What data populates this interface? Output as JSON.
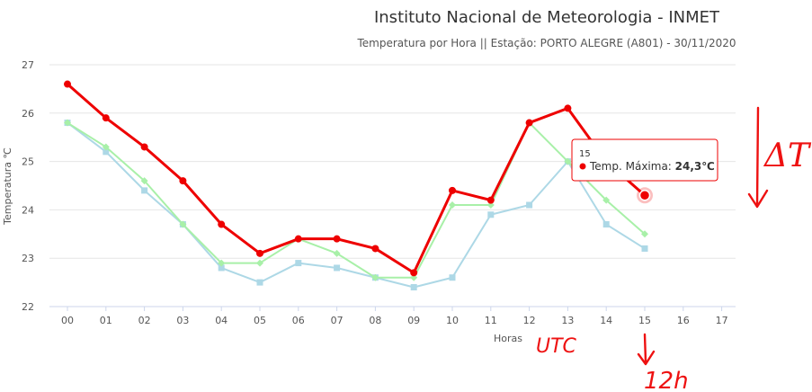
{
  "chart_data": {
    "type": "line",
    "title": "Instituto Nacional de Meteorologia - INMET",
    "subtitle": "Temperatura por Hora || Estação: PORTO ALEGRE (A801) - 30/11/2020",
    "xlabel": "Horas",
    "ylabel": "Temperatura ℃",
    "categories": [
      "00",
      "01",
      "02",
      "03",
      "04",
      "05",
      "06",
      "07",
      "08",
      "09",
      "10",
      "11",
      "12",
      "13",
      "14",
      "15",
      "16",
      "17"
    ],
    "ylim": [
      22,
      27
    ],
    "yticks": [
      "22",
      "23",
      "24",
      "25",
      "26",
      "27"
    ],
    "grid": true,
    "legend": "none",
    "series": [
      {
        "name": "",
        "color": "#add8e6",
        "marker": "square",
        "values": [
          25.8,
          25.2,
          24.4,
          23.7,
          22.8,
          22.5,
          22.9,
          22.8,
          22.6,
          22.4,
          22.6,
          23.9,
          24.1,
          25.0,
          23.7,
          23.2,
          null,
          null
        ]
      },
      {
        "name": "",
        "color": "#a8f0a8",
        "marker": "diamond",
        "values": [
          25.8,
          25.3,
          24.6,
          23.7,
          22.9,
          22.9,
          23.4,
          23.1,
          22.6,
          22.6,
          24.1,
          24.1,
          25.8,
          25.0,
          24.2,
          23.5,
          null,
          null
        ]
      },
      {
        "name": "Temp. Máxima",
        "color": "#ee0000",
        "marker": "circle",
        "values": [
          26.6,
          25.9,
          25.3,
          24.6,
          23.7,
          23.1,
          23.4,
          23.4,
          23.2,
          22.7,
          24.4,
          24.2,
          25.8,
          26.1,
          25.0,
          24.3,
          null,
          null
        ]
      }
    ],
    "tooltip": {
      "header": "15",
      "series": "Temp. Máxima",
      "value": "24,3℃"
    }
  },
  "annotations": {
    "delta_t": "ΔT",
    "utc": "UTC",
    "twelve_h": "12h"
  }
}
